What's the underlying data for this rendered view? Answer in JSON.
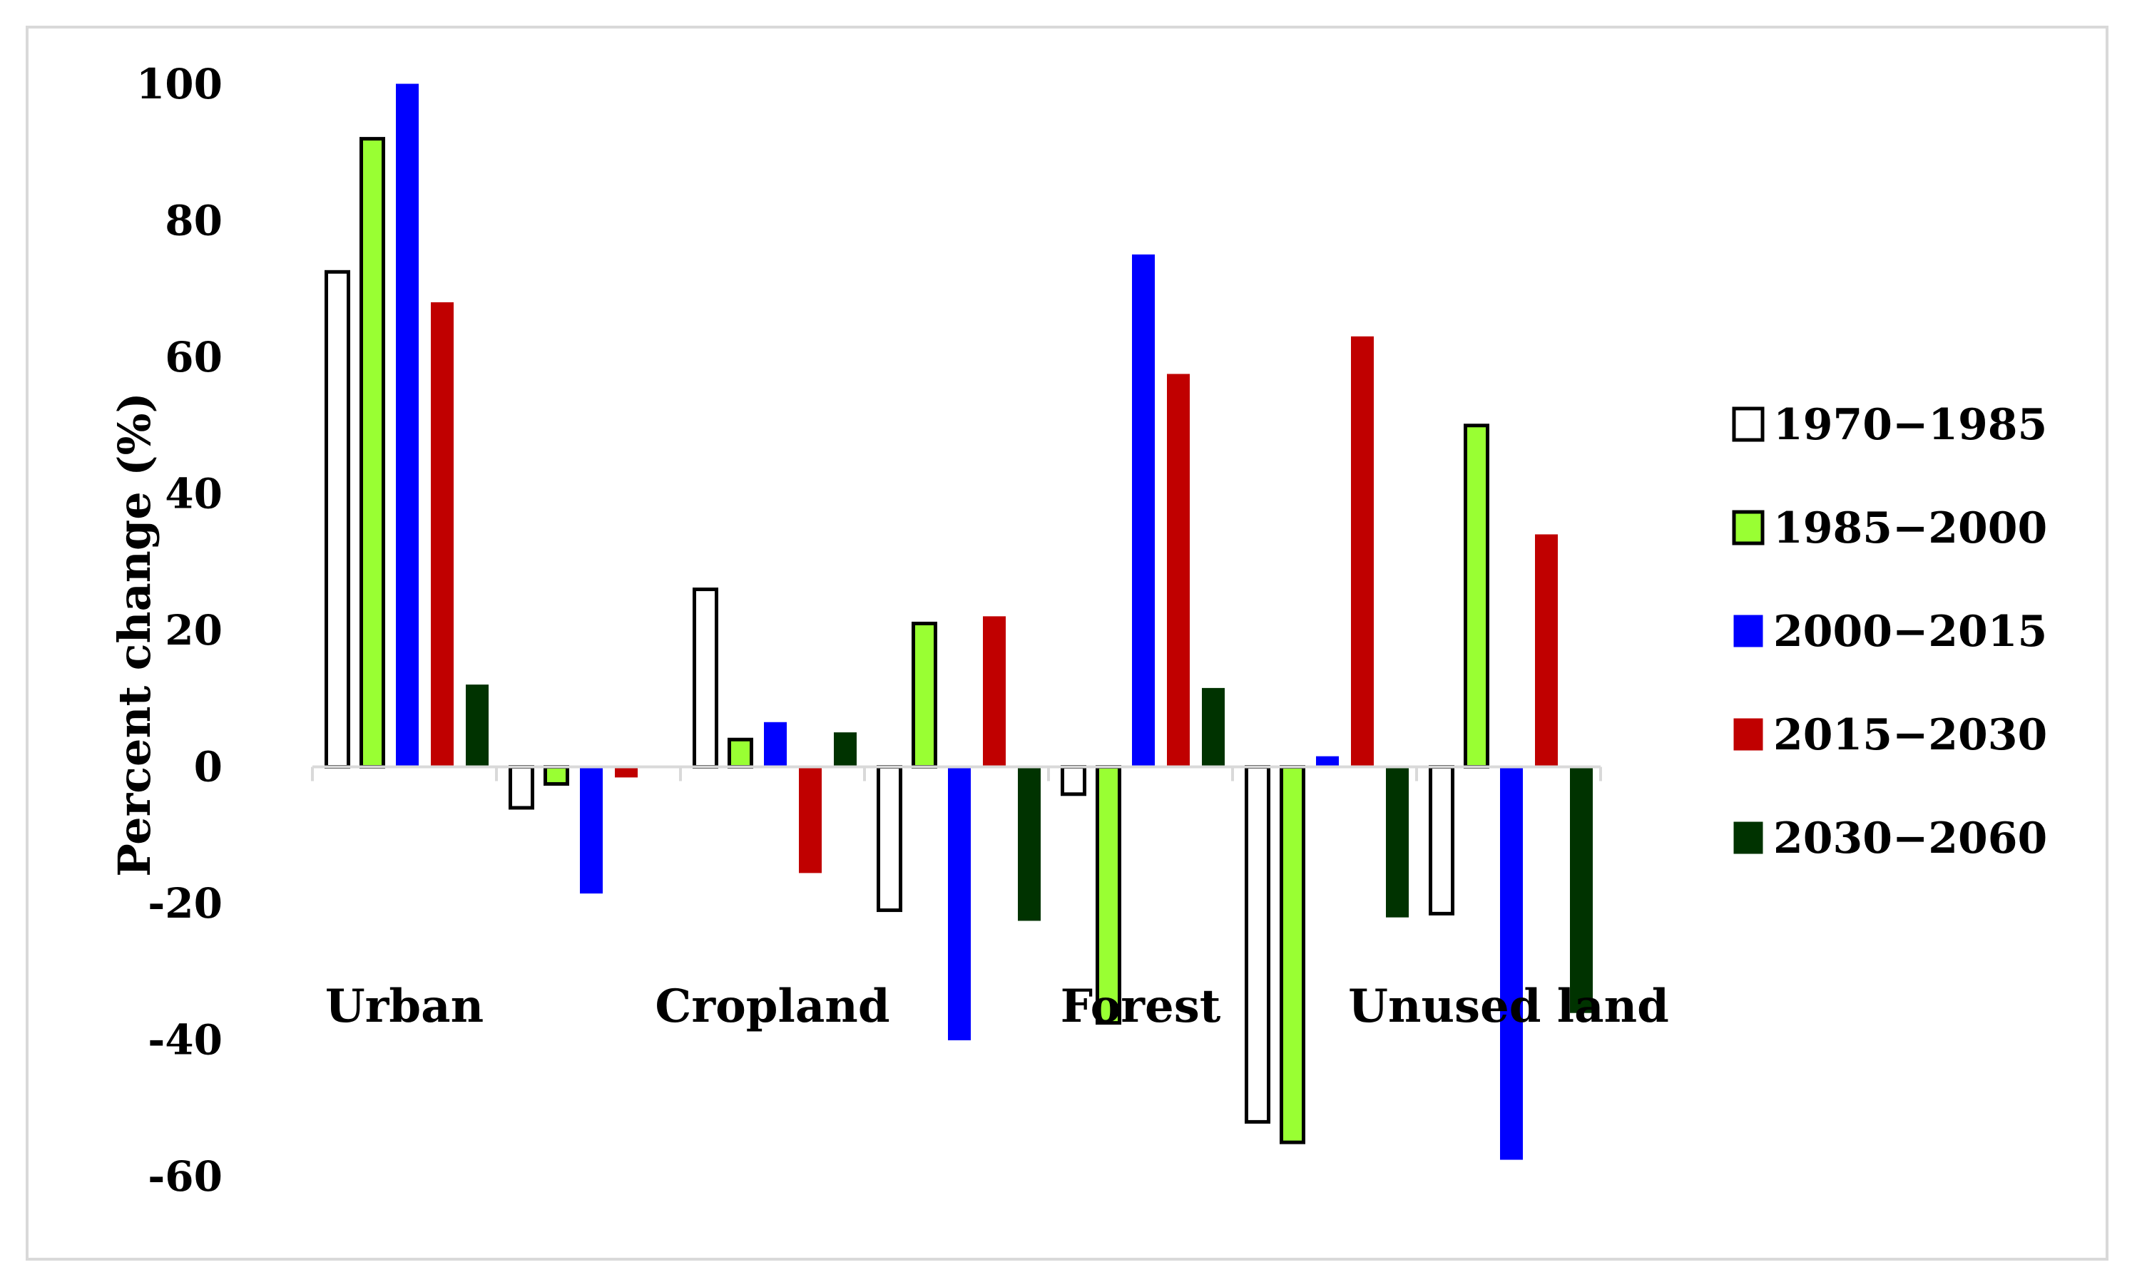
{
  "chart_data": {
    "type": "bar",
    "title": "",
    "xlabel": "",
    "ylabel": "Percent change (%)",
    "ylim": [
      -60,
      100
    ],
    "yticks": [
      100,
      80,
      60,
      40,
      20,
      0,
      -20,
      -40,
      -60
    ],
    "ytick_labels": [
      "100",
      "80",
      "60",
      "40",
      "20",
      "0",
      "-20",
      "-40",
      "-60"
    ],
    "grid": false,
    "legend_position": "right",
    "categories": [
      "Urban",
      "",
      "Cropland",
      "",
      "Forest",
      "",
      "Unused land"
    ],
    "series": [
      {
        "name": "1970−1985",
        "color": "#ffffff",
        "outline": "#000000",
        "values": [
          72.5,
          -6,
          26,
          -21,
          -4,
          -52,
          -21.5
        ]
      },
      {
        "name": "1985−2000",
        "color": "#99ff33",
        "outline": "#000000",
        "values": [
          92,
          -2.5,
          4,
          21,
          -37.5,
          -55,
          50
        ]
      },
      {
        "name": "2000−2015",
        "color": "#0000ff",
        "outline": "#0000ff",
        "values": [
          100,
          -18.5,
          6.5,
          -40,
          75,
          1.5,
          -57.5
        ]
      },
      {
        "name": "2015−2030",
        "color": "#c00000",
        "outline": "#c00000",
        "values": [
          68,
          -1.5,
          -15.5,
          22,
          57.5,
          63,
          34
        ]
      },
      {
        "name": "2030−2060",
        "color": "#003300",
        "outline": "#003300",
        "values": [
          12,
          0,
          5,
          -22.5,
          11.5,
          -22,
          -36
        ]
      }
    ]
  }
}
